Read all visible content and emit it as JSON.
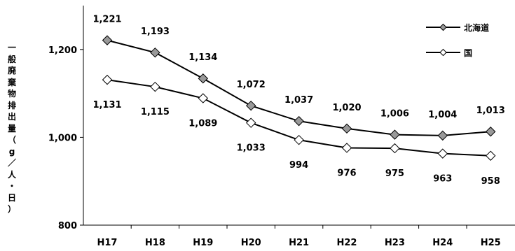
{
  "chart_data": {
    "type": "line",
    "categories": [
      "H17",
      "H18",
      "H19",
      "H20",
      "H21",
      "H22",
      "H23",
      "H24",
      "H25"
    ],
    "series": [
      {
        "name": "北海道",
        "values": [
          1221,
          1193,
          1134,
          1072,
          1037,
          1020,
          1006,
          1004,
          1013
        ],
        "labels": [
          "1,221",
          "1,193",
          "1,134",
          "1,072",
          "1,037",
          "1,020",
          "1,006",
          "1,004",
          "1,013"
        ],
        "marker": "diamond",
        "color": "#999999"
      },
      {
        "name": "国",
        "values": [
          1131,
          1115,
          1089,
          1033,
          994,
          976,
          975,
          963,
          958
        ],
        "labels": [
          "1,131",
          "1,115",
          "1,089",
          "1,033",
          "994",
          "976",
          "975",
          "963",
          "958"
        ],
        "marker": "diamond",
        "color": "#ffffff"
      }
    ],
    "ylabel": "一般廃棄物排出量（g／人・日）",
    "ylabel_chars": [
      "一",
      "般",
      "廃",
      "棄",
      "物",
      "排",
      "出",
      "量",
      "（",
      "g",
      "／",
      "人",
      "・",
      "日",
      "）"
    ],
    "yticks": [
      800,
      1000,
      1200
    ],
    "ytick_labels": [
      "800",
      "1,000",
      "1,200"
    ],
    "ylim": [
      800,
      1300
    ],
    "grid": false,
    "legend_position": "top-right"
  }
}
